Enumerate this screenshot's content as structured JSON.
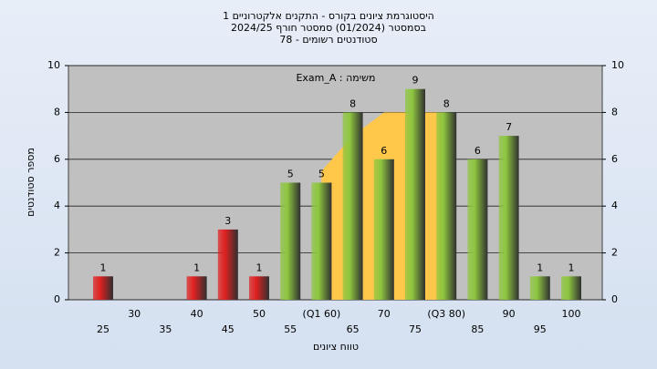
{
  "chart_data": {
    "type": "bar",
    "title": "היסטוגרמת ציונים בקורס - התקנים אלקטרוניים 1",
    "subtitle": "בסמסטר  (01/2024)  סמסטר חורף 2024/25",
    "subtitle2": "סטודנטים רשומים - 78",
    "annotation": "משימה : Exam_A",
    "x_label": "טווח ציונים",
    "y_label": "מספר סטודנטים",
    "categories": [
      "25",
      "30",
      "35",
      "40",
      "45",
      "50",
      "55",
      "(Q1 60)",
      "65",
      "70",
      "75",
      "(Q3 80)",
      "85",
      "90",
      "95",
      "100"
    ],
    "values": [
      1,
      0,
      0,
      1,
      3,
      1,
      5,
      5,
      8,
      6,
      9,
      8,
      6,
      7,
      1,
      1
    ],
    "value_labels": [
      "1",
      null,
      null,
      "1",
      "3",
      "1",
      "5",
      "5",
      "8",
      "6",
      "9",
      "8",
      "6",
      "7",
      "1",
      "1"
    ],
    "colors": [
      "#e02020",
      "#e02020",
      "#e02020",
      "#e02020",
      "#e02020",
      "#e02020",
      "#8ec63f",
      "#8ec63f",
      "#8ec63f",
      "#8ec63f",
      "#8ec63f",
      "#8ec63f",
      "#8ec63f",
      "#8ec63f",
      "#8ec63f",
      "#8ec63f"
    ],
    "area": {
      "color": "#ffc84a",
      "values": [
        null,
        null,
        null,
        null,
        null,
        null,
        null,
        5.5,
        7,
        8,
        8,
        8,
        null,
        null,
        null,
        null
      ]
    },
    "ylim": [
      0,
      10
    ],
    "yticks": [
      0,
      2,
      4,
      6,
      8,
      10
    ],
    "y2lim": [
      0,
      10
    ],
    "y2ticks": [
      0,
      2,
      4,
      6,
      8,
      10
    ],
    "grid": true
  }
}
